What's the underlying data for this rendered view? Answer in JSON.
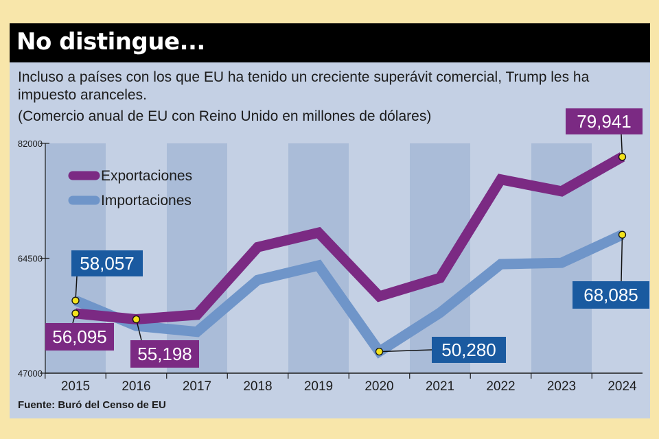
{
  "title": "No distingue...",
  "subtitle": "Incluso a países con los que EU ha tenido un creciente superávit comercial, Trump les ha impuesto aranceles.",
  "unit_note": "(Comercio anual de EU con Reino Unido en millones de dólares)",
  "source": "Fuente: Buró del Censo de EU",
  "colors": {
    "exports": "#7b2a83",
    "imports": "#6f95c9",
    "export_label_bg": "#7b2a83",
    "import_label_bg": "#1a5aa0",
    "marker": "#f3e21c",
    "background": "#f8e6aa",
    "panel": "#c4d0e4",
    "band": "#aabcd8"
  },
  "chart_data": {
    "type": "line",
    "categories": [
      "2015",
      "2016",
      "2017",
      "2018",
      "2019",
      "2020",
      "2021",
      "2022",
      "2023",
      "2024"
    ],
    "ylim": [
      47000,
      82000
    ],
    "yticks": [
      {
        "value": 82000,
        "label": "82000"
      },
      {
        "value": 64500,
        "label": "64500"
      },
      {
        "value": 47000,
        "label": "47000"
      }
    ],
    "legend_position": "top-left",
    "series": [
      {
        "key": "exports",
        "name": "Exportaciones",
        "values": [
          56095,
          55198,
          55900,
          66200,
          68400,
          58700,
          61500,
          76500,
          74700,
          79941
        ]
      },
      {
        "key": "imports",
        "name": "Importaciones",
        "values": [
          58057,
          54200,
          53300,
          61200,
          63400,
          50280,
          56200,
          63600,
          63800,
          68085
        ]
      }
    ],
    "annotations": [
      {
        "series": "exports",
        "index": 0,
        "label": "56,095"
      },
      {
        "series": "exports",
        "index": 1,
        "label": "55,198"
      },
      {
        "series": "exports",
        "index": 9,
        "label": "79,941"
      },
      {
        "series": "imports",
        "index": 0,
        "label": "58,057"
      },
      {
        "series": "imports",
        "index": 5,
        "label": "50,280"
      },
      {
        "series": "imports",
        "index": 9,
        "label": "68,085"
      }
    ]
  }
}
